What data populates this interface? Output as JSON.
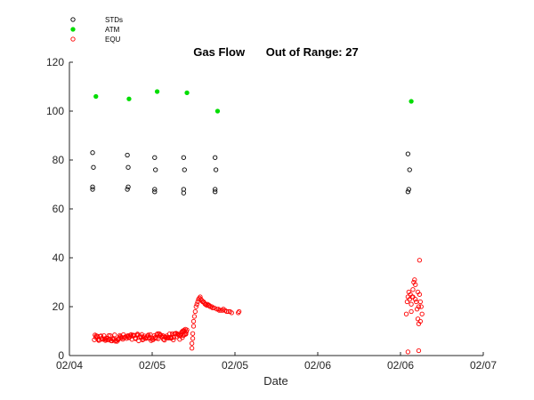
{
  "chart_data": {
    "type": "scatter",
    "title": "Gas Flow",
    "title_extra": "Out of Range: 27",
    "xlabel": "Date",
    "ylabel": "",
    "xlim": [
      0,
      5
    ],
    "ylim": [
      0,
      120
    ],
    "x_ticks": [
      0,
      1,
      2,
      3,
      4,
      5
    ],
    "x_tick_labels": [
      "02/04",
      "02/05",
      "02/05",
      "02/06",
      "02/06",
      "02/07"
    ],
    "y_ticks": [
      0,
      20,
      40,
      60,
      80,
      100,
      120
    ],
    "grid": false,
    "legend_position": "top-left",
    "series": [
      {
        "name": "STDs",
        "color": "#000000",
        "filled": false,
        "points": [
          [
            0.28,
            83
          ],
          [
            0.29,
            77
          ],
          [
            0.28,
            69
          ],
          [
            0.28,
            68
          ],
          [
            0.7,
            82
          ],
          [
            0.71,
            77
          ],
          [
            0.71,
            69
          ],
          [
            0.7,
            68
          ],
          [
            1.03,
            81
          ],
          [
            1.04,
            76
          ],
          [
            1.03,
            68
          ],
          [
            1.03,
            67
          ],
          [
            1.38,
            81
          ],
          [
            1.39,
            76
          ],
          [
            1.38,
            68
          ],
          [
            1.38,
            66.5
          ],
          [
            1.76,
            81
          ],
          [
            1.77,
            76
          ],
          [
            1.76,
            68
          ],
          [
            1.76,
            67
          ],
          [
            4.09,
            82.5
          ],
          [
            4.11,
            76
          ],
          [
            4.1,
            68
          ],
          [
            4.09,
            67
          ]
        ]
      },
      {
        "name": "ATM",
        "color": "#00dd00",
        "filled": true,
        "points": [
          [
            0.32,
            106
          ],
          [
            0.72,
            105
          ],
          [
            1.06,
            108
          ],
          [
            1.42,
            107.5
          ],
          [
            1.79,
            100
          ],
          [
            4.13,
            104
          ]
        ]
      },
      {
        "name": "EQU",
        "color": "#ff0000",
        "filled": false,
        "segments": [
          {
            "x_start": 0.3,
            "x_end": 1.35,
            "points": 120,
            "base": 7.0,
            "trend": 0.8,
            "jitter": 1.4
          },
          {
            "x_start": 1.35,
            "x_end": 1.42,
            "points": 14,
            "base": 8.0,
            "trend": 2.5,
            "jitter": 1.6
          }
        ],
        "points": [
          [
            1.48,
            3
          ],
          [
            1.48,
            5
          ],
          [
            1.49,
            7
          ],
          [
            1.49,
            9
          ],
          [
            1.5,
            12
          ],
          [
            1.5,
            14
          ],
          [
            1.51,
            16
          ],
          [
            1.52,
            18
          ],
          [
            1.53,
            20
          ],
          [
            1.54,
            21
          ],
          [
            1.55,
            22
          ],
          [
            1.56,
            23
          ],
          [
            1.57,
            23.5
          ],
          [
            1.58,
            24
          ],
          [
            1.59,
            23
          ],
          [
            1.6,
            22.5
          ],
          [
            1.61,
            22
          ],
          [
            1.62,
            22
          ],
          [
            1.63,
            21.5
          ],
          [
            1.64,
            21
          ],
          [
            1.65,
            21
          ],
          [
            1.66,
            20.5
          ],
          [
            1.67,
            21
          ],
          [
            1.68,
            20.5
          ],
          [
            1.69,
            20.5
          ],
          [
            1.7,
            20
          ],
          [
            1.72,
            20
          ],
          [
            1.73,
            19.5
          ],
          [
            1.75,
            19.5
          ],
          [
            1.78,
            19
          ],
          [
            1.8,
            19
          ],
          [
            1.81,
            18.5
          ],
          [
            1.83,
            18.5
          ],
          [
            1.85,
            18.5
          ],
          [
            1.86,
            19
          ],
          [
            1.88,
            18.5
          ],
          [
            1.9,
            18
          ],
          [
            1.92,
            18
          ],
          [
            1.94,
            18
          ],
          [
            1.96,
            17.5
          ],
          [
            2.04,
            17.5
          ],
          [
            2.05,
            18
          ],
          [
            4.07,
            17
          ],
          [
            4.08,
            22
          ],
          [
            4.09,
            24
          ],
          [
            4.1,
            26
          ],
          [
            4.11,
            23
          ],
          [
            4.12,
            25
          ],
          [
            4.13,
            21
          ],
          [
            4.14,
            24
          ],
          [
            4.15,
            27
          ],
          [
            4.16,
            30
          ],
          [
            4.17,
            31
          ],
          [
            4.18,
            29
          ],
          [
            4.19,
            22
          ],
          [
            4.2,
            19
          ],
          [
            4.21,
            15
          ],
          [
            4.22,
            13
          ],
          [
            4.22,
            20
          ],
          [
            4.23,
            25
          ],
          [
            4.23,
            39
          ],
          [
            4.24,
            22
          ],
          [
            4.25,
            20
          ],
          [
            4.26,
            17
          ],
          [
            4.13,
            18
          ],
          [
            4.15,
            24
          ],
          [
            4.18,
            23
          ],
          [
            4.21,
            26
          ],
          [
            4.24,
            14
          ],
          [
            4.09,
            1.5
          ],
          [
            4.22,
            2
          ]
        ]
      }
    ]
  }
}
